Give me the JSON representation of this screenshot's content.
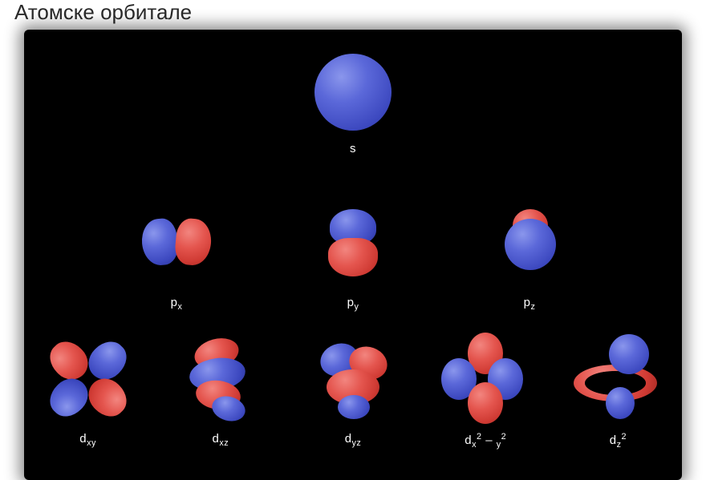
{
  "title": "Атомске орбитале",
  "diagram": {
    "type": "infographic",
    "background_color": "#000000",
    "text_color": "#ffffff",
    "label_fontsize": 15,
    "colors": {
      "positive_lobe": "#5b68d9",
      "positive_highlight": "#8a96ec",
      "positive_shadow": "#2a3496",
      "negative_lobe": "#e4554e",
      "negative_highlight": "#f2857f",
      "negative_shadow": "#a32822"
    },
    "rows": [
      {
        "name": "s",
        "orbitals": [
          {
            "key": "s",
            "label_html": "s"
          }
        ]
      },
      {
        "name": "p",
        "orbitals": [
          {
            "key": "px",
            "label_html": "p<sub>x</sub>"
          },
          {
            "key": "py",
            "label_html": "p<sub>y</sub>"
          },
          {
            "key": "pz",
            "label_html": "p<sub>z</sub>"
          }
        ]
      },
      {
        "name": "d",
        "orbitals": [
          {
            "key": "dxy",
            "label_html": "d<sub>xy</sub>"
          },
          {
            "key": "dxz",
            "label_html": "d<sub>xz</sub>"
          },
          {
            "key": "dyz",
            "label_html": "d<sub>yz</sub>"
          },
          {
            "key": "dx2y2",
            "label_html": "d<sub>x</sub><sup>2</sup> – <sub>y</sub><sup>2</sup>"
          },
          {
            "key": "dz2",
            "label_html": "d<sub>z</sub><sup>2</sup>"
          }
        ]
      }
    ],
    "orbitals": {
      "s": {
        "lobes": [
          {
            "phase": "positive",
            "shape": "sphere"
          }
        ]
      },
      "px": {
        "lobes": [
          {
            "phase": "positive"
          },
          {
            "phase": "negative"
          }
        ],
        "axis": "x"
      },
      "py": {
        "lobes": [
          {
            "phase": "positive"
          },
          {
            "phase": "negative"
          }
        ],
        "axis": "y"
      },
      "pz": {
        "lobes": [
          {
            "phase": "negative"
          },
          {
            "phase": "positive"
          }
        ],
        "axis": "z"
      },
      "dxy": {
        "lobes": 4,
        "pattern": "clover-diagonal",
        "phases": [
          "neg",
          "pos",
          "pos",
          "neg"
        ]
      },
      "dxz": {
        "lobes": 4,
        "pattern": "stacked-tilt",
        "phases": [
          "neg",
          "pos",
          "neg",
          "pos"
        ]
      },
      "dyz": {
        "lobes": 4,
        "pattern": "stacked-tilt",
        "phases": [
          "pos",
          "neg",
          "neg",
          "pos"
        ]
      },
      "dx2y2": {
        "lobes": 4,
        "pattern": "clover-axial",
        "phases": [
          "pos",
          "neg",
          "neg",
          "pos"
        ]
      },
      "dz2": {
        "lobes": 3,
        "pattern": "dumbbell-torus",
        "phases": [
          "pos",
          "neg",
          "pos"
        ]
      }
    }
  }
}
